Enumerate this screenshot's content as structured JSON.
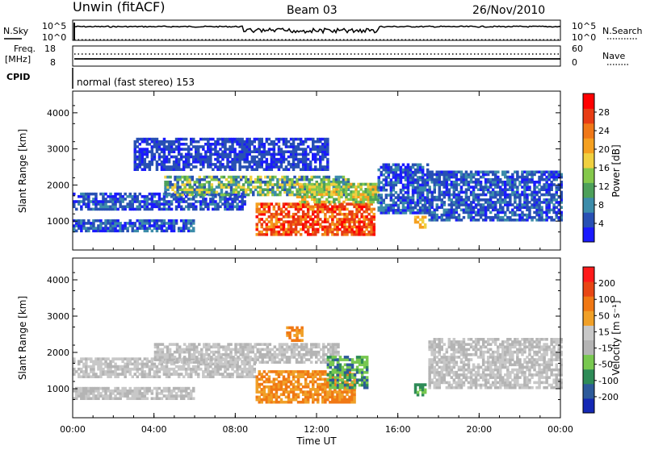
{
  "header": {
    "station": "Unwin (fitACF)",
    "beam": "Beam 03",
    "date": "26/Nov/2010"
  },
  "noise_panel": {
    "left_label": "N.Sky",
    "left_ticks": [
      "10^5",
      "10^0"
    ],
    "right_ticks": [
      "10^5",
      "10^0"
    ],
    "right_label": "N.Search"
  },
  "freq_panel": {
    "left_label_1": "Freq.",
    "left_label_2": "[MHz]",
    "left_ticks": [
      "18",
      "8"
    ],
    "right_ticks": [
      "60",
      "0"
    ],
    "right_label": "Nave"
  },
  "cpid_panel": {
    "label": "CPID",
    "mode_text": "normal (fast stereo) 153"
  },
  "colors": {
    "power_scale": [
      "#1a1aff",
      "#2850b4",
      "#3c8caa",
      "#4da05a",
      "#84c84b",
      "#f0d040",
      "#f5a020",
      "#f07818",
      "#e83c14",
      "#ff0000"
    ],
    "velocity_scale": [
      "#1428b4",
      "#2d5a9a",
      "#2e8b57",
      "#78c850",
      "#b4b4b4",
      "#c8c8c8",
      "#f0a028",
      "#f07814",
      "#e84614",
      "#ff1a1a"
    ]
  },
  "chart_data": [
    {
      "type": "heatmap",
      "name": "power",
      "ylabel": "Slant Range [km]",
      "yticks": [
        1000,
        2000,
        3000,
        4000
      ],
      "ylim": [
        200,
        4600
      ],
      "xlim": [
        0,
        24
      ],
      "colorbar_label": "Power [dB]",
      "colorbar_ticks": [
        4,
        8,
        12,
        16,
        20,
        24,
        28
      ],
      "colorbar_range": [
        0,
        32
      ]
    },
    {
      "type": "heatmap",
      "name": "velocity",
      "ylabel": "Slant Range [km]",
      "yticks": [
        1000,
        2000,
        3000,
        4000
      ],
      "ylim": [
        200,
        4600
      ],
      "xlim": [
        0,
        24
      ],
      "xlabel": "Time UT",
      "xticks": [
        "00:00",
        "04:00",
        "08:00",
        "12:00",
        "16:00",
        "20:00",
        "00:00"
      ],
      "colorbar_label": "Velocity [m s⁻¹]",
      "colorbar_ticks": [
        "200",
        "100",
        "50",
        "15",
        "-15",
        "-50",
        "-100",
        "-200"
      ]
    }
  ]
}
